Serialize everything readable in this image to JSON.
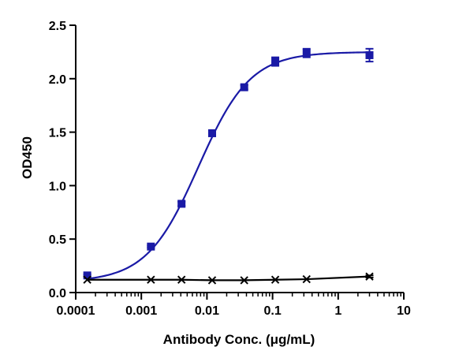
{
  "chart_data": {
    "type": "scatter",
    "title": "",
    "xlabel": "Antibody Conc. (μg/mL)",
    "ylabel": "OD450",
    "xscale": "log",
    "xlim": [
      0.0001,
      10
    ],
    "ylim": [
      0.0,
      2.5
    ],
    "x_ticks": [
      0.0001,
      0.001,
      0.01,
      0.1,
      1,
      10
    ],
    "x_tick_labels": [
      "0.0001",
      "0.001",
      "0.01",
      "0.1",
      "1",
      "10"
    ],
    "y_ticks": [
      0.0,
      0.5,
      1.0,
      1.5,
      2.0,
      2.5
    ],
    "y_tick_labels": [
      "0.0",
      "0.5",
      "1.0",
      "1.5",
      "2.0",
      "2.5"
    ],
    "grid": false,
    "legend": "none",
    "series": [
      {
        "color": "#1a1aa6",
        "marker": "square",
        "x": [
          0.00015,
          0.0014,
          0.0041,
          0.012,
          0.037,
          0.11,
          0.33,
          3.0
        ],
        "y": [
          0.16,
          0.43,
          0.83,
          1.49,
          1.92,
          2.16,
          2.24,
          2.22
        ],
        "err": [
          0.01,
          0.01,
          0.02,
          0.02,
          0.02,
          0.04,
          0.04,
          0.06
        ],
        "fit": {
          "type": "4PL",
          "bottom": 0.1,
          "top": 2.25,
          "ec50": 0.0074,
          "hill": 1.1
        }
      },
      {
        "color": "#000000",
        "marker": "x",
        "x": [
          0.00015,
          0.0014,
          0.0041,
          0.012,
          0.037,
          0.11,
          0.33,
          3.0
        ],
        "y": [
          0.12,
          0.12,
          0.12,
          0.115,
          0.115,
          0.12,
          0.125,
          0.15
        ],
        "err": [
          0,
          0,
          0,
          0,
          0,
          0,
          0,
          0.01
        ],
        "fit": {
          "type": "line"
        }
      }
    ]
  }
}
